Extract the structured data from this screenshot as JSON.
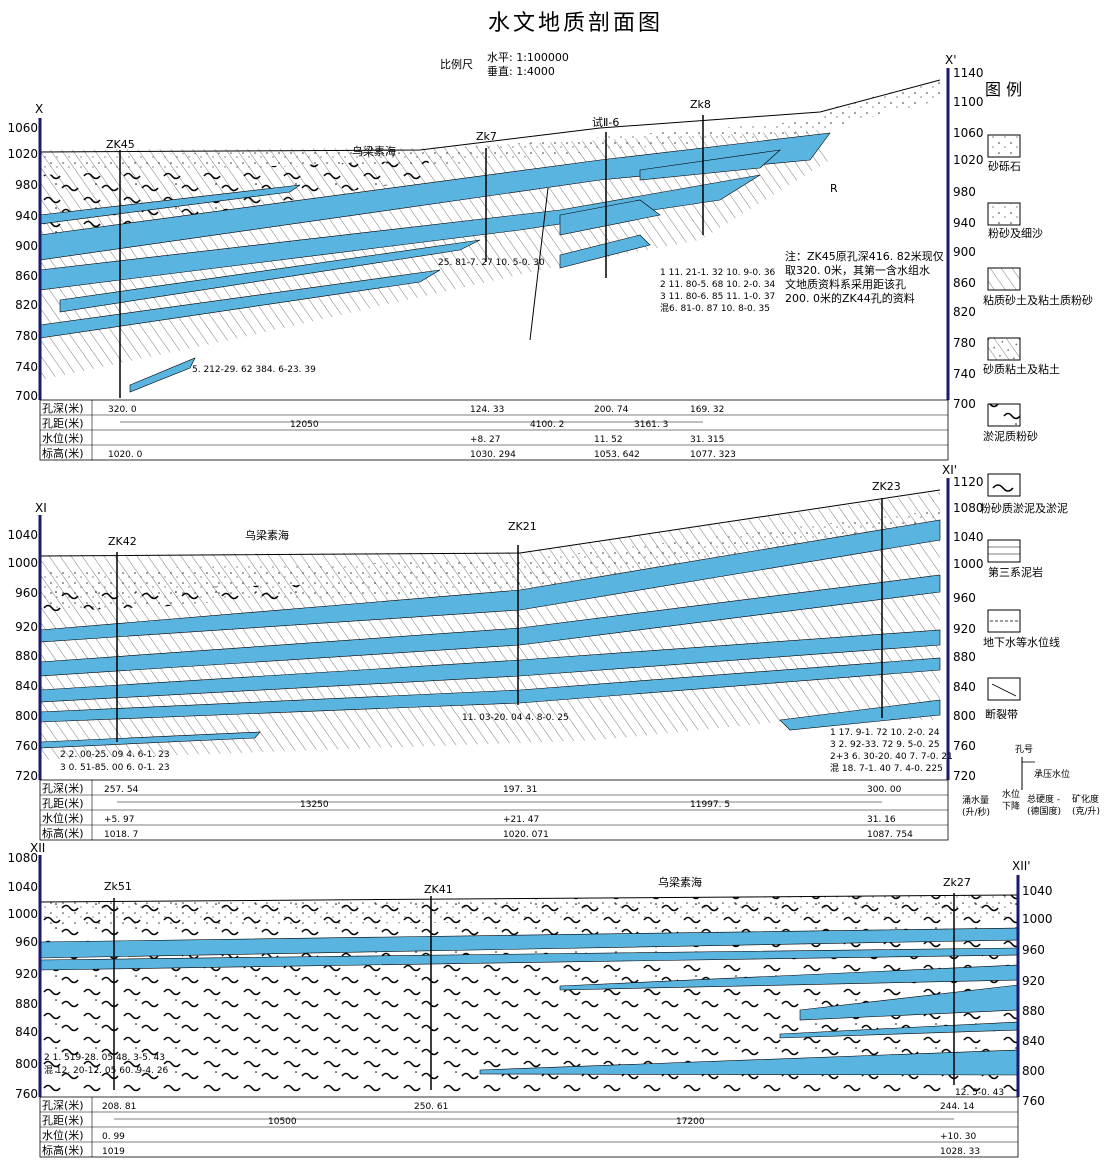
{
  "title": "水文地质剖面图",
  "scale": {
    "label": "比例尺",
    "horizontal": "水平: 1:100000",
    "vertical": "垂直: 1:4000"
  },
  "colors": {
    "aquifer": "#5ab4e0",
    "line": "#000000",
    "axis": "#1a1a6e"
  },
  "sections": [
    {
      "left_label": "X",
      "right_label": "X'",
      "left_ticks": [
        "1060",
        "1020",
        "980",
        "940",
        "900",
        "860",
        "820",
        "780",
        "740",
        "700"
      ],
      "right_ticks": [
        "1140",
        "1100",
        "1060",
        "1020",
        "980",
        "940",
        "900",
        "860",
        "820",
        "780",
        "740",
        "700"
      ],
      "lake": "乌梁素海",
      "wells": [
        {
          "name": "ZK45",
          "depth": "320. 0",
          "water": "",
          "elev": "1020. 0",
          "note": ""
        },
        {
          "name": "Zk7",
          "depth": "124. 33",
          "water": "+8. 27",
          "elev": "1030. 294",
          "note": "25. 81-7. 27  10. 5-0. 30"
        },
        {
          "name": "试Ⅱ-6",
          "depth": "200. 74",
          "water": "11. 52",
          "elev": "1053. 642",
          "note": ""
        },
        {
          "name": "Zk8",
          "depth": "169. 32",
          "water": "31. 315",
          "elev": "1077. 323",
          "note": ""
        }
      ],
      "distances": [
        "12050",
        "4100. 2",
        "3161. 3"
      ],
      "extra_notes": [
        "1 11. 21-1. 32  10. 9-0. 36",
        "2 11. 80-5. 68  10. 2-0. 34",
        "3 11. 80-6. 85  11. 1-0. 37",
        "混6. 81-0. 87  10. 8-0. 35",
        "5. 212-29. 62  384. 6-23. 39"
      ],
      "annotation": [
        "注：ZK45原孔深416. 82米现仅",
        "取320. 0米，其第一含水组水",
        "文地质资料系采用距该孔",
        "200. 0米的ZK44孔的资料"
      ],
      "marker_r": "R"
    },
    {
      "left_label": "XI",
      "right_label": "XI'",
      "left_ticks": [
        "1040",
        "1000",
        "960",
        "920",
        "880",
        "840",
        "800",
        "760",
        "720"
      ],
      "right_ticks": [
        "1120",
        "1080",
        "1040",
        "1000",
        "960",
        "920",
        "880",
        "840",
        "800",
        "760",
        "720"
      ],
      "lake": "乌梁素海",
      "wells": [
        {
          "name": "ZK42",
          "depth": "257. 54",
          "water": "+5. 97",
          "elev": "1018. 7",
          "note": ""
        },
        {
          "name": "ZK21",
          "depth": "197. 31",
          "water": "+21. 47",
          "elev": "1020. 071",
          "note": "11. 03-20. 04  4. 8-0. 25"
        },
        {
          "name": "ZK23",
          "depth": "300. 00",
          "water": "31. 16",
          "elev": "1087. 754",
          "note": ""
        }
      ],
      "distances": [
        "13250",
        "11997. 5"
      ],
      "extra_notes": [
        "2 2. 00-25. 09  4. 6-1. 23",
        "3 0. 51-85. 00  6. 0-1. 23",
        "1  17. 9-1. 72   10. 2-0. 24",
        "3  2. 92-33. 72   9. 5-0. 25",
        "2+3 6. 30-20. 40   7. 7-0. 21",
        "混  18. 7-1. 40   7. 4-0. 225"
      ]
    },
    {
      "left_label": "XII",
      "right_label": "XII'",
      "left_ticks": [
        "1080",
        "1040",
        "1000",
        "960",
        "920",
        "880",
        "840",
        "800",
        "760"
      ],
      "right_ticks": [
        "1040",
        "1000",
        "960",
        "920",
        "880",
        "840",
        "800",
        "760"
      ],
      "lake": "乌梁素海",
      "wells": [
        {
          "name": "Zk51",
          "depth": "208. 81",
          "water": "0. 99",
          "elev": "1019",
          "note": ""
        },
        {
          "name": "ZK41",
          "depth": "250. 61",
          "water": "",
          "elev": "",
          "note": ""
        },
        {
          "name": "Zk27",
          "depth": "244. 14",
          "water": "+10. 30",
          "elev": "1028. 33",
          "note": "12. 5-0. 43"
        }
      ],
      "distances": [
        "10500",
        "17200"
      ],
      "extra_notes": [
        "2 1. 519-28. 05   48. 3-5. 43",
        "混 12. 20-12. 05   60. 9-4. 26"
      ]
    }
  ],
  "table_labels": [
    "孔深(米)",
    "孔距(米)",
    "水位(米)",
    "标高(米)"
  ],
  "legend": {
    "title": "图 例",
    "items": [
      "砂砾石",
      "粉砂及细沙",
      "粘质砂土及粘土质粉砂",
      "砂质粘土及粘土",
      "淤泥质粉砂",
      "粉砂质淤泥及淤泥",
      "第三系泥岩",
      "地下水等水位线",
      "断裂带"
    ],
    "key_title": "孔号",
    "key_pressure": "承压水位",
    "key_bottom": [
      "涌水量",
      "(升/秒)",
      "水位",
      "下降",
      "总硬度 -",
      "(德国度)",
      "矿化度",
      "(克/升)"
    ]
  }
}
